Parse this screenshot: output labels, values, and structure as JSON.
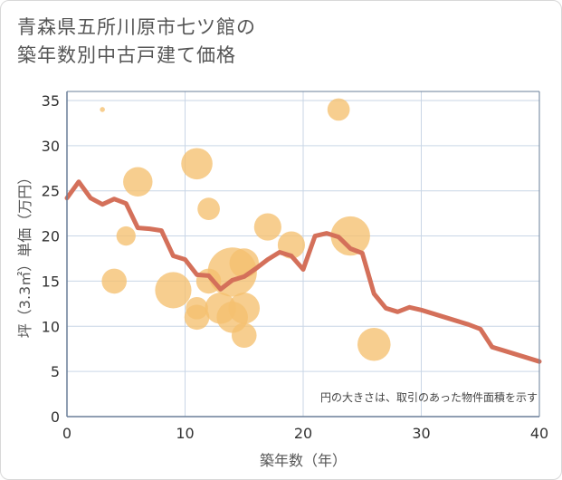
{
  "title_line1": "青森県五所川原市七ツ館の",
  "title_line2": "築年数別中古戸建て価格",
  "chart_data": {
    "type": "scatter",
    "title": "青森県五所川原市七ツ館の築年数別中古戸建て価格",
    "xlabel": "築年数（年）",
    "ylabel": "坪（3.3㎡）単価（万円）",
    "xlim": [
      0,
      40
    ],
    "ylim": [
      0,
      36
    ],
    "xticks": [
      0,
      10,
      20,
      30,
      40
    ],
    "yticks": [
      0,
      5,
      10,
      15,
      20,
      25,
      30,
      35
    ],
    "grid": true,
    "note": "円の大きさは、取引のあった物件面積を示す",
    "colors": {
      "bubble": "#f5c070",
      "line": "#d4705a",
      "axis": "#6a7f99",
      "grid": "#c9d6e6"
    },
    "bubbles": [
      {
        "x": 3,
        "y": 34,
        "size": 1
      },
      {
        "x": 4,
        "y": 15,
        "size": 4
      },
      {
        "x": 5,
        "y": 20,
        "size": 2
      },
      {
        "x": 6,
        "y": 26,
        "size": 6
      },
      {
        "x": 9,
        "y": 14,
        "size": 10
      },
      {
        "x": 11,
        "y": 28,
        "size": 7
      },
      {
        "x": 11,
        "y": 12,
        "size": 3
      },
      {
        "x": 11,
        "y": 11,
        "size": 4
      },
      {
        "x": 12,
        "y": 23,
        "size": 3
      },
      {
        "x": 12,
        "y": 15,
        "size": 4
      },
      {
        "x": 13,
        "y": 12,
        "size": 7
      },
      {
        "x": 14,
        "y": 11,
        "size": 7
      },
      {
        "x": 14,
        "y": 16,
        "size": 20
      },
      {
        "x": 15,
        "y": 17,
        "size": 6
      },
      {
        "x": 15,
        "y": 12,
        "size": 7
      },
      {
        "x": 15,
        "y": 9,
        "size": 4
      },
      {
        "x": 17,
        "y": 21,
        "size": 5
      },
      {
        "x": 19,
        "y": 19,
        "size": 5
      },
      {
        "x": 23,
        "y": 34,
        "size": 3
      },
      {
        "x": 24,
        "y": 20,
        "size": 12
      },
      {
        "x": 26,
        "y": 8,
        "size": 8
      }
    ],
    "trend": {
      "x": [
        0,
        1,
        2,
        3,
        4,
        5,
        6,
        7,
        8,
        9,
        10,
        11,
        12,
        13,
        14,
        15,
        16,
        17,
        18,
        19,
        20,
        21,
        22,
        23,
        24,
        25,
        26,
        27,
        28,
        29,
        30,
        31,
        32,
        33,
        34,
        35,
        36,
        37,
        38,
        39,
        40
      ],
      "y": [
        24.2,
        26.0,
        24.2,
        23.5,
        24.1,
        23.6,
        20.9,
        20.8,
        20.6,
        17.8,
        17.4,
        15.7,
        15.6,
        14.1,
        15.1,
        15.5,
        16.4,
        17.4,
        18.2,
        17.8,
        16.3,
        20.0,
        20.3,
        19.9,
        18.6,
        18.1,
        13.6,
        12.0,
        11.6,
        12.1,
        11.8,
        11.4,
        11.0,
        10.6,
        10.2,
        9.7,
        7.7,
        7.3,
        6.9,
        6.5,
        6.1
      ]
    }
  }
}
